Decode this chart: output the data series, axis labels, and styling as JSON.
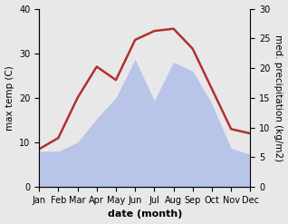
{
  "months": [
    "Jan",
    "Feb",
    "Mar",
    "Apr",
    "May",
    "Jun",
    "Jul",
    "Aug",
    "Sep",
    "Oct",
    "Nov",
    "Dec"
  ],
  "temp": [
    8.5,
    11.0,
    20.0,
    27.0,
    24.0,
    33.0,
    35.0,
    35.5,
    31.0,
    22.0,
    13.0,
    12.0
  ],
  "precip": [
    6.0,
    6.0,
    7.5,
    11.5,
    15.0,
    21.5,
    14.5,
    21.0,
    19.5,
    14.0,
    6.5,
    5.5
  ],
  "temp_color": "#b03030",
  "precip_fill_color": "#b8c4e8",
  "left_ylim": [
    0,
    40
  ],
  "right_ylim": [
    0,
    30
  ],
  "left_ylabel": "max temp (C)",
  "right_ylabel": "med. precipitation (kg/m2)",
  "xlabel": "date (month)",
  "left_yticks": [
    0,
    10,
    20,
    30,
    40
  ],
  "right_yticks": [
    0,
    5,
    10,
    15,
    20,
    25,
    30
  ],
  "axis_label_fontsize": 7.5,
  "tick_fontsize": 7,
  "xlabel_fontsize": 8,
  "xlabel_fontweight": "bold",
  "line_width": 1.8,
  "bg_color": "#e8e8e8"
}
